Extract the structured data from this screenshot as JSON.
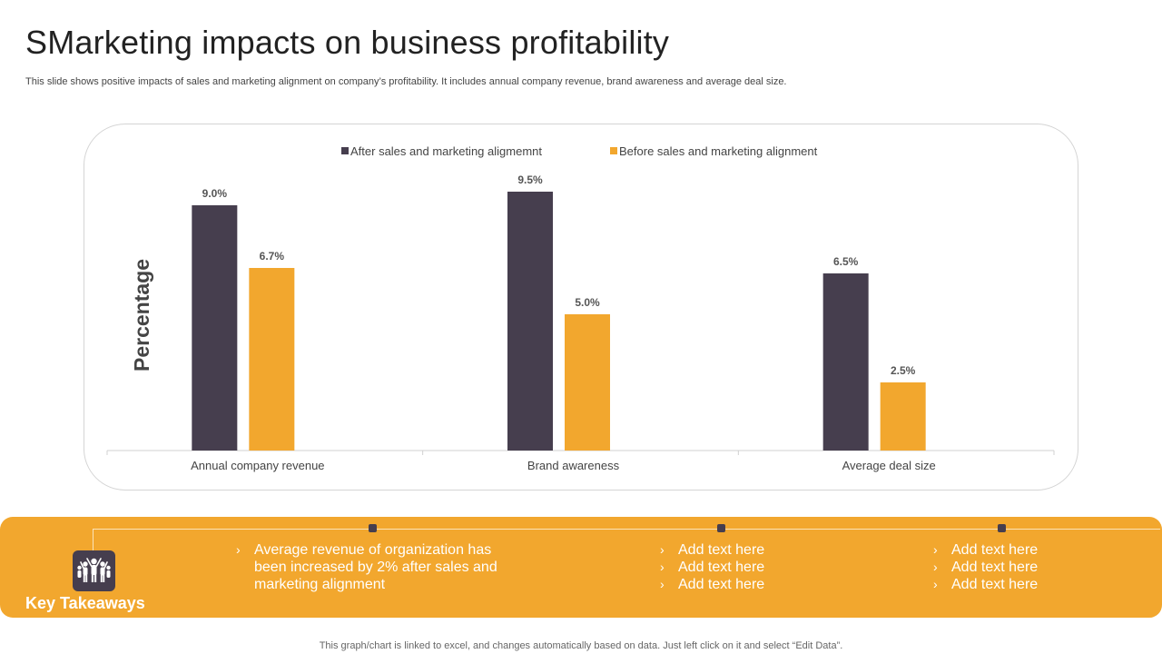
{
  "slide": {
    "title": "SMarketing impacts on business profitability",
    "subtitle": "This slide shows positive impacts of sales and marketing alignment on company’s profitability. It includes annual company revenue, brand awareness and average deal size.",
    "footer_note": "This graph/chart is linked to excel,  and changes automatically based on data. Just left click on it and select “Edit Data”."
  },
  "chart_data": {
    "type": "bar",
    "title": "",
    "xlabel": "",
    "ylabel": "Percentage",
    "ylim": [
      0,
      10
    ],
    "grid": false,
    "legend_position": "top-center",
    "categories": [
      "Annual company revenue",
      "Brand awareness",
      "Average deal size"
    ],
    "series": [
      {
        "name": "After sales and marketing aligmemnt",
        "color": "#463e4e",
        "values": [
          9.0,
          9.5,
          6.5
        ],
        "labels": [
          "9.0%",
          "9.5%",
          "6.5%"
        ]
      },
      {
        "name": "Before sales and marketing alignment",
        "color": "#f2a72e",
        "values": [
          6.7,
          5.0,
          2.5
        ],
        "labels": [
          "6.7%",
          "5.0%",
          "2.5%"
        ]
      }
    ]
  },
  "takeaways": {
    "label": "Key Takeaways",
    "icon": "team-icon",
    "columns": [
      {
        "items": [
          "Average revenue  of organization has been increased by 2% after sales and marketing alignment"
        ]
      },
      {
        "items": [
          "Add text here",
          "Add text here",
          "Add text here"
        ]
      },
      {
        "items": [
          "Add text here",
          "Add text here",
          "Add text here"
        ]
      }
    ]
  },
  "colors": {
    "accent": "#f2a72e",
    "dark": "#463e4e"
  }
}
